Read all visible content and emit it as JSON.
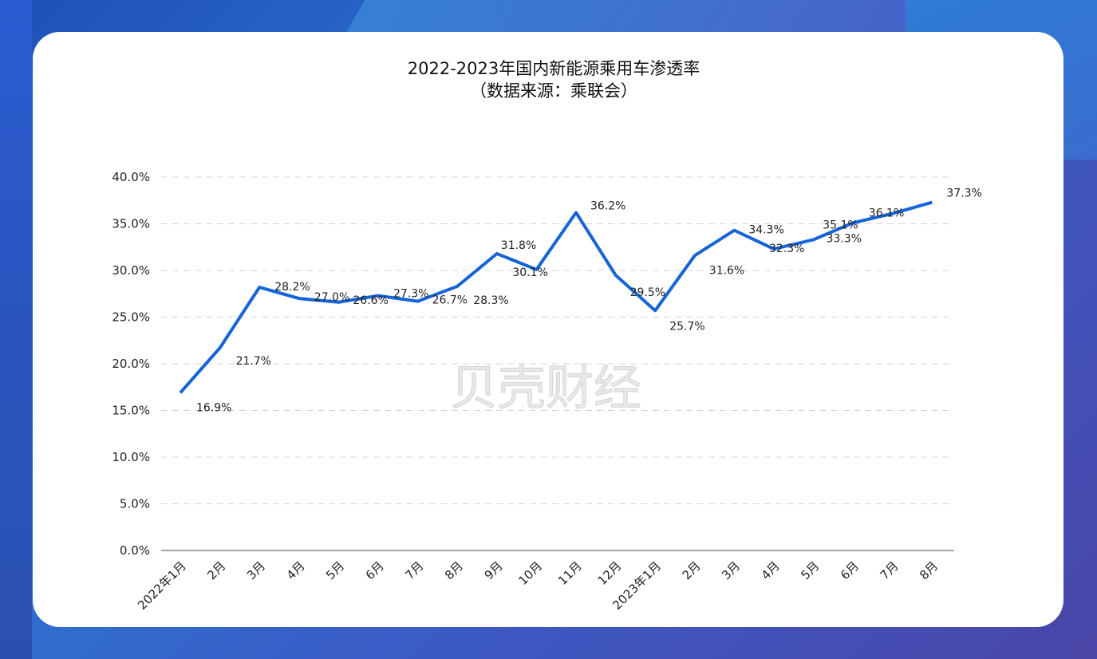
{
  "chart_data": {
    "type": "line",
    "title": "2022-2023年国内新能源乘用车渗透率",
    "subtitle": "（数据来源：乘联会）",
    "categories": [
      "2022年1月",
      "2月",
      "3月",
      "4月",
      "5月",
      "6月",
      "7月",
      "8月",
      "9月",
      "10月",
      "11月",
      "12月",
      "2023年1月",
      "2月",
      "3月",
      "4月",
      "5月",
      "6月",
      "7月",
      "8月"
    ],
    "series": [
      {
        "values": [
          16.9,
          21.7,
          28.2,
          27.0,
          26.6,
          27.3,
          26.7,
          28.3,
          31.8,
          30.1,
          36.2,
          29.5,
          25.7,
          31.6,
          34.3,
          32.3,
          33.3,
          35.1,
          36.1,
          37.3
        ]
      }
    ],
    "data_labels": [
      "16.9%",
      "21.7%",
      "28.2%",
      "27.0%",
      "26.6%",
      "27.3%",
      "26.7%",
      "28.3%",
      "31.8%",
      "30.1%",
      "36.2%",
      "29.5%",
      "25.7%",
      "31.6%",
      "34.3%",
      "32.3%",
      "33.3%",
      "35.1%",
      "36.1%",
      "37.3%"
    ],
    "yticks": [
      "0.0%",
      "5.0%",
      "10.0%",
      "15.0%",
      "20.0%",
      "25.0%",
      "30.0%",
      "35.0%",
      "40.0%"
    ],
    "ylim": [
      0,
      40
    ],
    "grid": "horizontal dashed",
    "line_color": "#1565d8"
  },
  "watermark": "贝壳财经"
}
